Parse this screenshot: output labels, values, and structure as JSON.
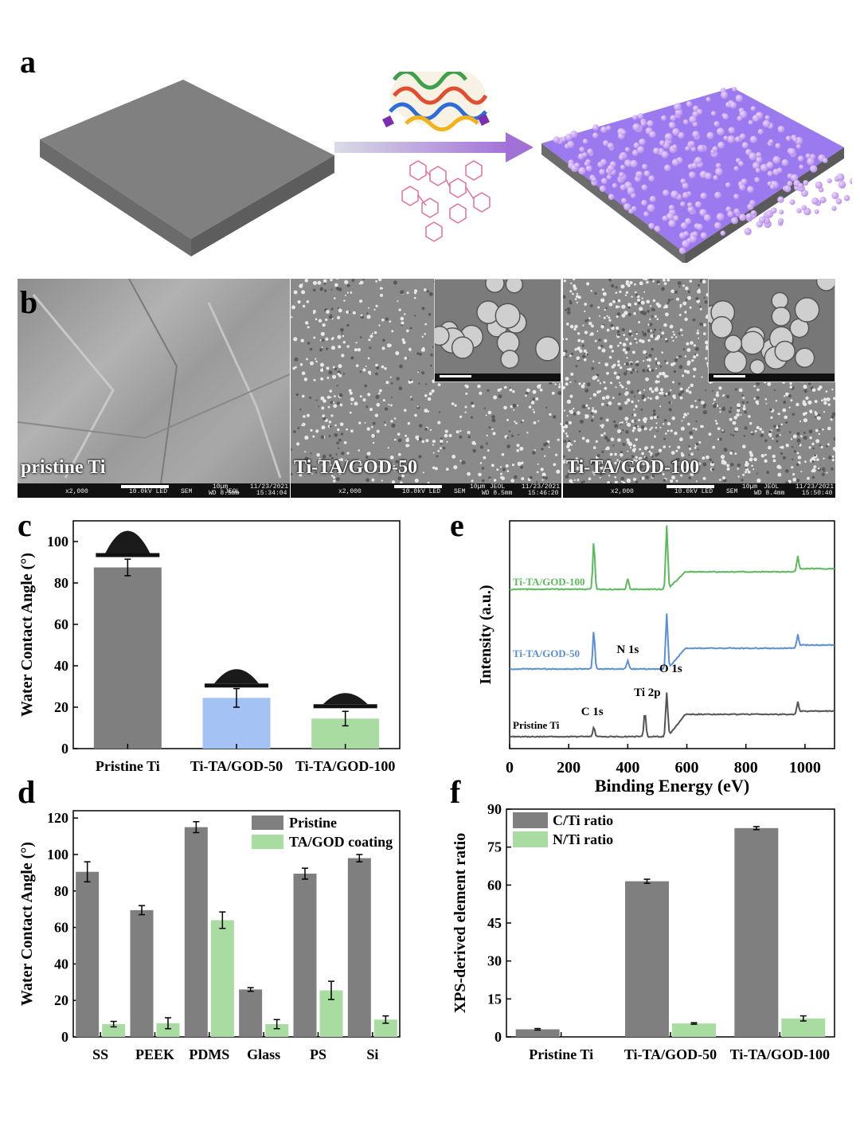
{
  "panels": {
    "a": "a",
    "b": "b",
    "c": "c",
    "d": "d",
    "e": "e",
    "f": "f"
  },
  "sem": [
    {
      "label": "pristine Ti",
      "bar": {
        "scale": "10µm",
        "kv": "10.0kV LED",
        "mag": "x2,000",
        "mode": "SEM",
        "wd": "WD 8.5mm",
        "vendor": "JEOL",
        "date": "11/23/2021",
        "time": "15:34:04"
      }
    },
    {
      "label": "Ti-TA/GOD-50",
      "bar": {
        "scale": "10µm",
        "kv": "10.0kV LED",
        "mag": "x2,000",
        "mode": "SEM",
        "wd": "WD 8.5mm",
        "vendor": "JEOL",
        "date": "11/23/2021",
        "time": "15:46:20"
      }
    },
    {
      "label": "Ti-TA/GOD-100",
      "bar": {
        "scale": "10µm",
        "kv": "10.0kV LED",
        "mag": "x2,000",
        "mode": "SEM",
        "wd": "WD 8.4mm",
        "vendor": "JEOL",
        "date": "11/23/2021",
        "time": "15:50:40"
      }
    }
  ],
  "colors": {
    "gray": "#7f7f7f",
    "blue": "#a4c2f4",
    "green": "#a8dca0",
    "purple": "#a68bf0",
    "blue_line": "#5b8fd6",
    "green_line": "#5cba5c",
    "gray_line": "#555555"
  },
  "chart_data": [
    {
      "id": "c",
      "type": "bar",
      "ylabel": "Water Contact Angle (°)",
      "categories": [
        "Pristine Ti",
        "Ti-TA/GOD-50",
        "Ti-TA/GOD-100"
      ],
      "values": [
        87.5,
        24.5,
        14.5
      ],
      "errors": [
        4,
        4.5,
        3.5
      ],
      "colors": [
        "#7f7f7f",
        "#a4c2f4",
        "#a8dca0"
      ],
      "ylim": [
        0,
        110
      ],
      "yticks": [
        0,
        20,
        40,
        60,
        80,
        100
      ]
    },
    {
      "id": "d",
      "type": "bar",
      "ylabel": "Water Contact Angle (°)",
      "categories": [
        "SS",
        "PEEK",
        "PDMS",
        "Glass",
        "PS",
        "Si"
      ],
      "series": [
        {
          "name": "Pristine",
          "values": [
            90.5,
            69.5,
            115,
            26,
            89.5,
            98
          ],
          "errors": [
            5.5,
            2.5,
            3,
            1,
            3,
            2
          ],
          "color": "#7f7f7f"
        },
        {
          "name": "TA/GOD coating",
          "values": [
            7,
            7.5,
            64,
            7,
            25.5,
            9.5
          ],
          "errors": [
            1.5,
            3,
            4.5,
            2.5,
            5,
            2
          ],
          "color": "#a8dca0"
        }
      ],
      "ylim": [
        0,
        124
      ],
      "yticks": [
        0,
        20,
        40,
        60,
        80,
        100,
        120
      ],
      "legend": "top-right"
    },
    {
      "id": "e",
      "type": "line",
      "xlabel": "Binding Energy (eV)",
      "ylabel": "Intensity (a.u.)",
      "xlim": [
        0,
        1100
      ],
      "xticks": [
        0,
        200,
        400,
        600,
        800,
        1000
      ],
      "series": [
        {
          "name": "Pristine Ti",
          "color": "#555555"
        },
        {
          "name": "Ti-TA/GOD-50",
          "color": "#5b8fd6"
        },
        {
          "name": "Ti-TA/GOD-100",
          "color": "#5cba5c"
        }
      ],
      "annotations": [
        "C 1s",
        "Ti 2p",
        "O 1s",
        "N 1s"
      ]
    },
    {
      "id": "f",
      "type": "bar",
      "ylabel": "XPS-derived element ratio",
      "categories": [
        "Pristine Ti",
        "Ti-TA/GOD-50",
        "Ti-TA/GOD-100"
      ],
      "series": [
        {
          "name": "C/Ti ratio",
          "values": [
            3,
            61.5,
            82.5
          ],
          "errors": [
            0.3,
            0.8,
            0.6
          ],
          "color": "#7f7f7f"
        },
        {
          "name": "N/Ti ratio",
          "values": [
            0,
            5.3,
            7.3
          ],
          "errors": [
            0,
            0.3,
            1
          ],
          "color": "#a8dca0"
        }
      ],
      "ylim": [
        0,
        90
      ],
      "yticks": [
        0,
        15,
        30,
        45,
        60,
        75,
        90
      ],
      "legend": "top-left"
    }
  ]
}
